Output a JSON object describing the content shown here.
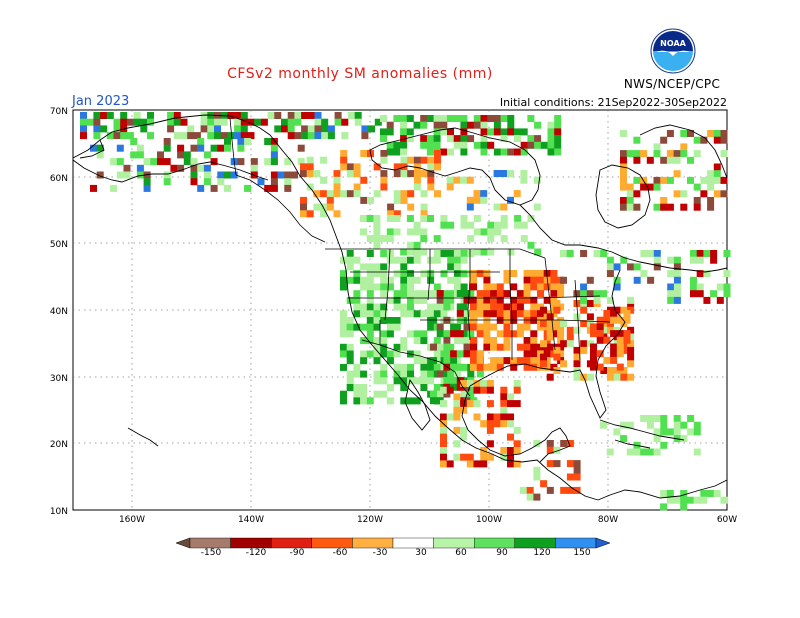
{
  "title": "CFSv2 monthly SM anomalies (mm)",
  "month": "Jan 2023",
  "initial_conditions": "Initial conditions: 21Sep2022-30Sep2022",
  "agency": "NWS/NCEP/CPC",
  "logo_text": "NOAA",
  "lat_labels": [
    "70N",
    "60N",
    "50N",
    "40N",
    "30N",
    "20N",
    "10N"
  ],
  "lon_labels": [
    "160W",
    "140W",
    "120W",
    "100W",
    "80W",
    "60W"
  ],
  "colorbar": {
    "ticks": [
      "-150",
      "-120",
      "-90",
      "-60",
      "-30",
      "30",
      "60",
      "90",
      "120",
      "150"
    ],
    "colors": [
      "#6b4a3a",
      "#a67b6b",
      "#a00000",
      "#e02010",
      "#ff5a10",
      "#ffb040",
      "#ffffff",
      "#b8f4a8",
      "#60e060",
      "#10a020",
      "#3090f0",
      "#2060d0"
    ]
  },
  "anomaly_colors": {
    "dry_extreme": "#8b4a3a",
    "dry_strong": "#c00000",
    "dry_moderate": "#ff4a10",
    "dry_light": "#ffaa30",
    "wet_light": "#b0f0a0",
    "wet_moderate": "#50e050",
    "wet_strong": "#10a020",
    "wet_extreme": "#2a78e0"
  }
}
